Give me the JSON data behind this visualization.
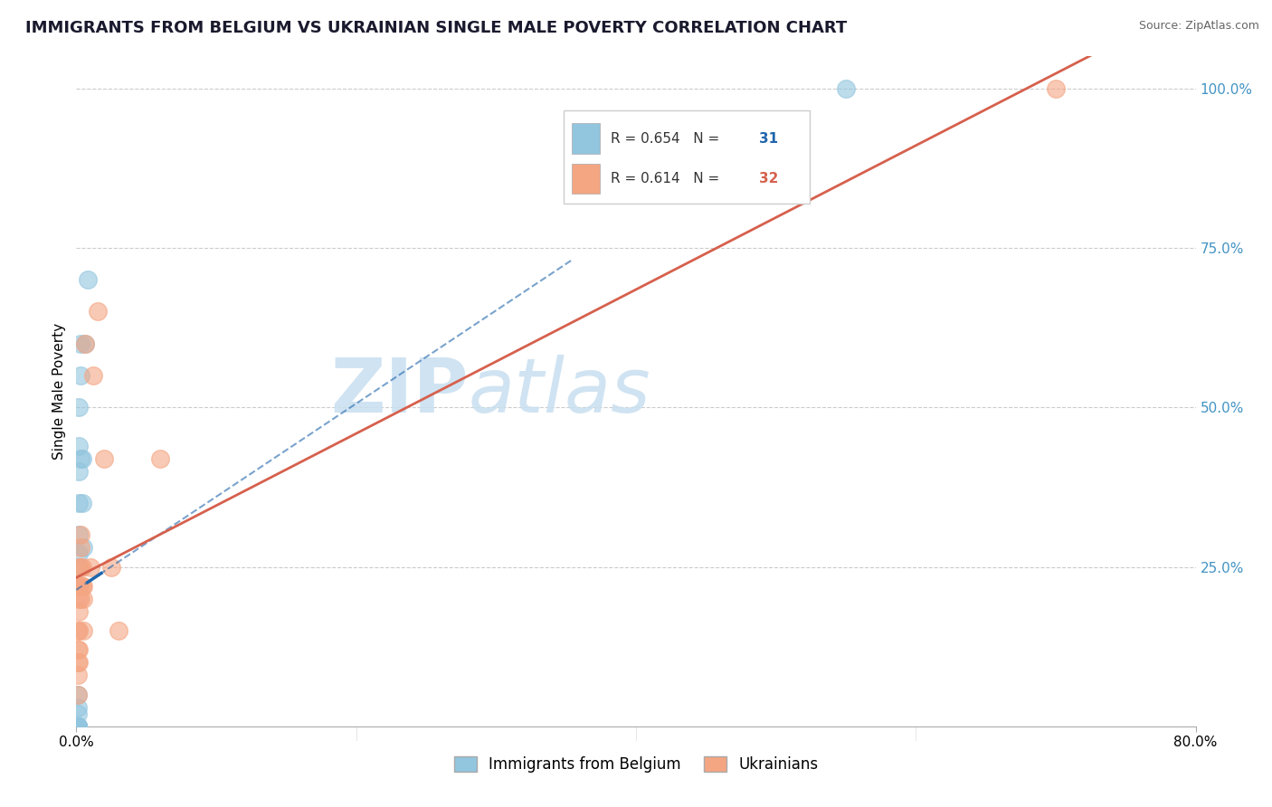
{
  "title": "IMMIGRANTS FROM BELGIUM VS UKRAINIAN SINGLE MALE POVERTY CORRELATION CHART",
  "source": "Source: ZipAtlas.com",
  "ylabel": "Single Male Poverty",
  "xlim": [
    0.0,
    0.8
  ],
  "ylim": [
    0.0,
    1.05
  ],
  "R_blue": 0.654,
  "N_blue": 31,
  "R_pink": 0.614,
  "N_pink": 32,
  "legend_labels": [
    "Immigrants from Belgium",
    "Ukrainians"
  ],
  "blue_color": "#92c5de",
  "blue_edge_color": "#4393c3",
  "blue_line_color": "#2166ac",
  "pink_color": "#f4a582",
  "pink_edge_color": "#d6604d",
  "pink_line_color": "#d6604d",
  "watermark_zip_color": "#c8dff0",
  "watermark_atlas_color": "#c8dff0",
  "ytick_color": "#4393c3",
  "blue_scatter_x": [
    0.001,
    0.001,
    0.001,
    0.001,
    0.001,
    0.001,
    0.001,
    0.001,
    0.001,
    0.001,
    0.001,
    0.001,
    0.001,
    0.001,
    0.001,
    0.002,
    0.002,
    0.002,
    0.002,
    0.002,
    0.002,
    0.002,
    0.003,
    0.003,
    0.003,
    0.004,
    0.004,
    0.005,
    0.006,
    0.008,
    0.55
  ],
  "blue_scatter_y": [
    0.0,
    0.0,
    0.0,
    0.0,
    0.0,
    0.0,
    0.0,
    0.0,
    0.0,
    0.0,
    0.0,
    0.0,
    0.02,
    0.03,
    0.05,
    0.25,
    0.27,
    0.3,
    0.35,
    0.4,
    0.44,
    0.5,
    0.42,
    0.55,
    0.6,
    0.35,
    0.42,
    0.28,
    0.6,
    0.7,
    1.0
  ],
  "pink_scatter_x": [
    0.001,
    0.001,
    0.001,
    0.001,
    0.001,
    0.002,
    0.002,
    0.002,
    0.002,
    0.002,
    0.002,
    0.002,
    0.002,
    0.003,
    0.003,
    0.003,
    0.003,
    0.003,
    0.004,
    0.004,
    0.005,
    0.005,
    0.005,
    0.006,
    0.01,
    0.012,
    0.015,
    0.02,
    0.025,
    0.03,
    0.06,
    0.7
  ],
  "pink_scatter_y": [
    0.05,
    0.08,
    0.1,
    0.12,
    0.15,
    0.1,
    0.12,
    0.15,
    0.18,
    0.2,
    0.22,
    0.22,
    0.25,
    0.2,
    0.22,
    0.25,
    0.28,
    0.3,
    0.22,
    0.25,
    0.15,
    0.2,
    0.22,
    0.6,
    0.25,
    0.55,
    0.65,
    0.42,
    0.25,
    0.15,
    0.42,
    1.0
  ]
}
